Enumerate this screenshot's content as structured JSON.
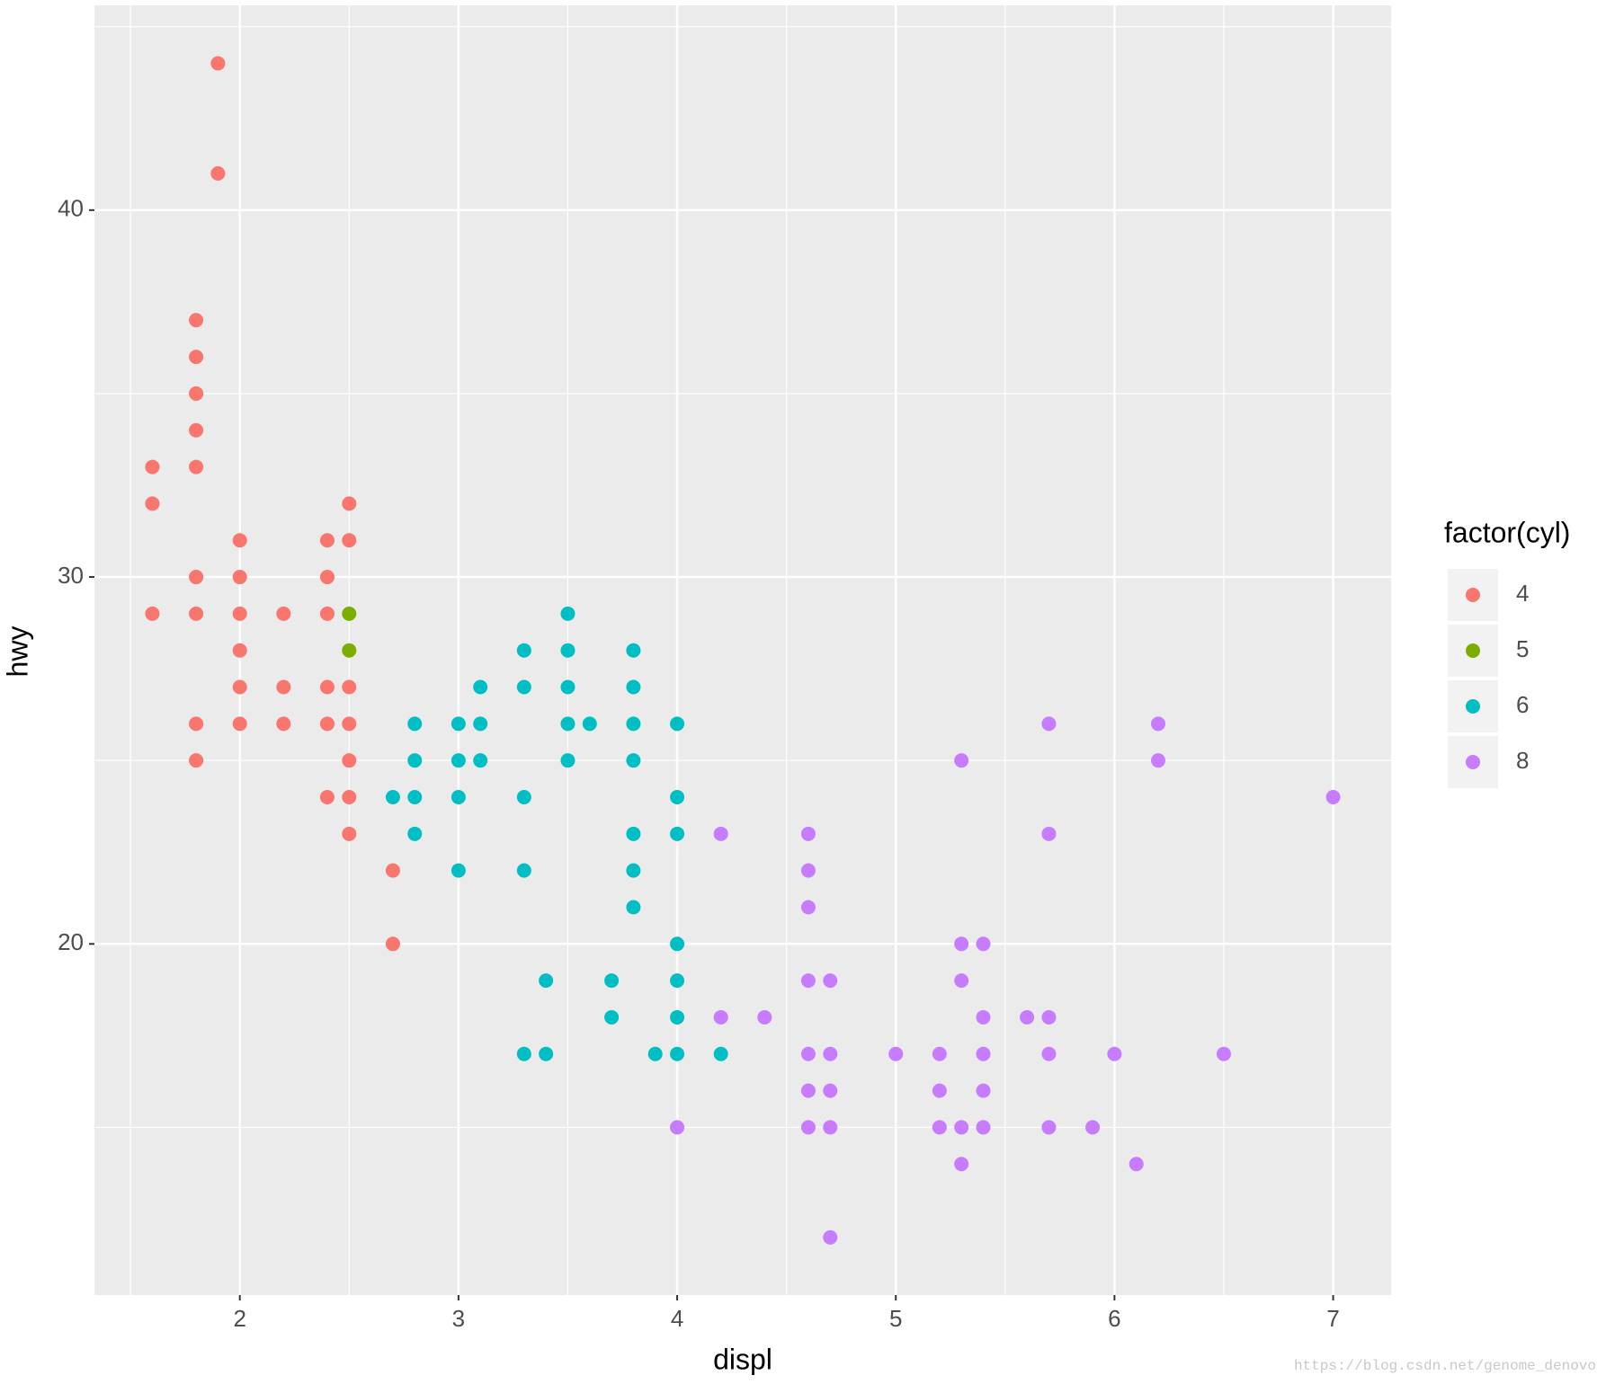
{
  "chart_data": {
    "type": "scatter",
    "xlabel": "displ",
    "ylabel": "hwy",
    "legend_title": "factor(cyl)",
    "legend_position": "right",
    "grid": true,
    "xlim": [
      1.335,
      7.265
    ],
    "ylim": [
      10.43,
      45.58
    ],
    "xticks": [
      2,
      3,
      4,
      5,
      6,
      7
    ],
    "yticks": [
      20,
      30,
      40
    ],
    "xminor": [
      1.5,
      2.5,
      3.5,
      4.5,
      5.5,
      6.5
    ],
    "yminor": [
      15,
      25,
      35,
      45
    ],
    "series": [
      {
        "name": "4",
        "color": "#F8766D",
        "x": [
          1.9,
          1.9,
          1.8,
          1.8,
          1.8,
          1.8,
          1.8,
          1.6,
          1.6,
          1.6,
          1.8,
          1.8,
          1.8,
          1.8,
          2,
          2,
          2,
          2,
          2,
          2,
          2.2,
          2.2,
          2.2,
          2.4,
          2.4,
          2.4,
          2.4,
          2.4,
          2.4,
          2.5,
          2.5,
          2.5,
          2.5,
          2.5,
          2.5,
          2.5,
          2.7,
          2.7
        ],
        "values": [
          44,
          41,
          37,
          36,
          35,
          34,
          33,
          33,
          32,
          29,
          30,
          29,
          26,
          25,
          31,
          30,
          29,
          28,
          27,
          26,
          29,
          27,
          26,
          31,
          30,
          29,
          27,
          26,
          24,
          32,
          31,
          27,
          26,
          25,
          24,
          23,
          22,
          20
        ]
      },
      {
        "name": "5",
        "color": "#7CAE00",
        "x": [
          2.5,
          2.5
        ],
        "values": [
          29,
          28
        ]
      },
      {
        "name": "6",
        "color": "#00BFC4",
        "x": [
          2.7,
          2.8,
          2.8,
          2.8,
          2.8,
          3,
          3,
          3,
          3,
          3.1,
          3.1,
          3.1,
          3.3,
          3.3,
          3.3,
          3.3,
          3.3,
          3.4,
          3.4,
          3.5,
          3.5,
          3.5,
          3.5,
          3.5,
          3.6,
          3.7,
          3.7,
          3.8,
          3.8,
          3.8,
          3.8,
          3.8,
          3.8,
          3.8,
          3.9,
          4,
          4,
          4,
          4,
          4,
          4,
          4,
          4.2
        ],
        "values": [
          24,
          26,
          25,
          24,
          23,
          26,
          25,
          24,
          22,
          27,
          26,
          25,
          28,
          27,
          24,
          22,
          17,
          19,
          17,
          29,
          28,
          27,
          26,
          25,
          26,
          19,
          18,
          28,
          27,
          26,
          25,
          23,
          22,
          21,
          17,
          26,
          24,
          23,
          20,
          19,
          18,
          17,
          17
        ]
      },
      {
        "name": "8",
        "color": "#C77CFF",
        "x": [
          4,
          4.2,
          4.2,
          4.4,
          4.6,
          4.6,
          4.6,
          4.6,
          4.6,
          4.6,
          4.6,
          4.7,
          4.7,
          4.7,
          4.7,
          4.7,
          5,
          5.2,
          5.2,
          5.2,
          5.3,
          5.3,
          5.3,
          5.3,
          5.3,
          5.4,
          5.4,
          5.4,
          5.4,
          5.4,
          5.6,
          5.7,
          5.7,
          5.7,
          5.7,
          5.7,
          5.9,
          6,
          6.1,
          6.2,
          6.2,
          6.5,
          7
        ],
        "values": [
          15,
          23,
          18,
          18,
          23,
          22,
          21,
          19,
          17,
          16,
          15,
          19,
          17,
          16,
          15,
          12,
          17,
          17,
          16,
          15,
          25,
          20,
          19,
          15,
          14,
          20,
          18,
          17,
          16,
          15,
          18,
          26,
          23,
          18,
          17,
          15,
          15,
          17,
          14,
          26,
          25,
          17,
          24
        ]
      }
    ],
    "watermark": "https://blog.csdn.net/genome_denovo"
  }
}
